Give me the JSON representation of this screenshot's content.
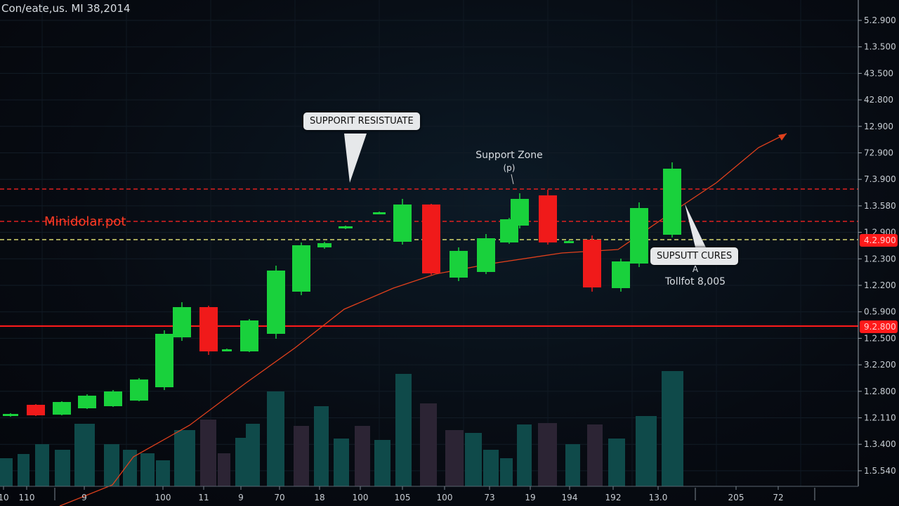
{
  "chart_data": {
    "type": "candlestick",
    "title": "Con/eate,us. MI 38,2014",
    "x_tick_labels": [
      "10",
      "110",
      "9",
      "100",
      "11",
      "9",
      "70",
      "18",
      "100",
      "105",
      "100",
      "73",
      "19",
      "194",
      "192",
      "13.0",
      "205",
      "72"
    ],
    "y_tick_labels": [
      "5.2.900",
      "1.3.500",
      "43.500",
      "42.800",
      "12.900",
      "72.900",
      "7.3.900",
      "1.3.580",
      "1.2.900",
      "1.2.300",
      "1.2.200",
      "0.5.900",
      "1.2.500",
      "3.2.200",
      "1.2.800",
      "1.2.110",
      "1.3.400",
      "1.5.540"
    ],
    "price_tags": [
      {
        "text": "4.2.900",
        "color": "#ff1a1a"
      },
      {
        "text": "9.2.800",
        "color": "#ff1a1a"
      }
    ],
    "candles": [
      {
        "o": 108,
        "c": 111,
        "h": 112,
        "l": 107
      },
      {
        "o": 124,
        "c": 109,
        "h": 125,
        "l": 108
      },
      {
        "o": 110,
        "c": 128,
        "h": 129,
        "l": 109
      },
      {
        "o": 119,
        "c": 137,
        "h": 139,
        "l": 118
      },
      {
        "o": 122,
        "c": 143,
        "h": 145,
        "l": 121
      },
      {
        "o": 130,
        "c": 160,
        "h": 162,
        "l": 129
      },
      {
        "o": 149,
        "c": 225,
        "h": 230,
        "l": 145
      },
      {
        "o": 220,
        "c": 263,
        "h": 270,
        "l": 215
      },
      {
        "o": 263,
        "c": 200,
        "h": 265,
        "l": 195
      },
      {
        "o": 202,
        "c": 203,
        "h": 204,
        "l": 201
      },
      {
        "o": 200,
        "c": 244,
        "h": 246,
        "l": 199
      },
      {
        "o": 225,
        "c": 315,
        "h": 322,
        "l": 218
      },
      {
        "o": 285,
        "c": 351,
        "h": 355,
        "l": 280
      },
      {
        "o": 348,
        "c": 354,
        "h": 356,
        "l": 346
      },
      {
        "o": 375,
        "c": 378,
        "h": 379,
        "l": 374
      },
      {
        "o": 396,
        "c": 398,
        "h": 399,
        "l": 395
      },
      {
        "o": 356,
        "c": 409,
        "h": 417,
        "l": 352
      },
      {
        "o": 409,
        "c": 311,
        "h": 410,
        "l": 309
      },
      {
        "o": 305,
        "c": 343,
        "h": 348,
        "l": 300
      },
      {
        "o": 313,
        "c": 361,
        "h": 367,
        "l": 310
      },
      {
        "o": 355,
        "c": 388,
        "h": 390,
        "l": 353
      },
      {
        "o": 379,
        "c": 417,
        "h": 425,
        "l": 375
      },
      {
        "o": 422,
        "c": 355,
        "h": 430,
        "l": 352
      },
      {
        "o": 356,
        "c": 357,
        "h": 358,
        "l": 355
      },
      {
        "o": 359,
        "c": 291,
        "h": 365,
        "l": 285
      },
      {
        "o": 290,
        "c": 328,
        "h": 332,
        "l": 285
      },
      {
        "o": 325,
        "c": 404,
        "h": 412,
        "l": 320
      },
      {
        "o": 366,
        "c": 460,
        "h": 469,
        "l": 362
      }
    ],
    "volume": [
      {
        "v": 40,
        "dir": "up"
      },
      {
        "v": 46,
        "dir": "up"
      },
      {
        "v": 60,
        "dir": "up"
      },
      {
        "v": 52,
        "dir": "up"
      },
      {
        "v": 89,
        "dir": "up"
      },
      {
        "v": 60,
        "dir": "up"
      },
      {
        "v": 52,
        "dir": "up"
      },
      {
        "v": 47,
        "dir": "up"
      },
      {
        "v": 37,
        "dir": "up"
      },
      {
        "v": 80,
        "dir": "up"
      },
      {
        "v": 95,
        "dir": "down"
      },
      {
        "v": 47,
        "dir": "down"
      },
      {
        "v": 69,
        "dir": "up"
      },
      {
        "v": 89,
        "dir": "up"
      },
      {
        "v": 135,
        "dir": "up"
      },
      {
        "v": 86,
        "dir": "down"
      },
      {
        "v": 114,
        "dir": "up"
      },
      {
        "v": 68,
        "dir": "up"
      },
      {
        "v": 86,
        "dir": "down"
      },
      {
        "v": 66,
        "dir": "up"
      },
      {
        "v": 160,
        "dir": "up"
      },
      {
        "v": 118,
        "dir": "down"
      },
      {
        "v": 80,
        "dir": "down"
      },
      {
        "v": 76,
        "dir": "up"
      },
      {
        "v": 52,
        "dir": "up"
      },
      {
        "v": 40,
        "dir": "up"
      },
      {
        "v": 88,
        "dir": "up"
      },
      {
        "v": 90,
        "dir": "down"
      },
      {
        "v": 60,
        "dir": "up"
      },
      {
        "v": 88,
        "dir": "down"
      },
      {
        "v": 68,
        "dir": "up"
      },
      {
        "v": 100,
        "dir": "up"
      },
      {
        "v": 164,
        "dir": "up"
      }
    ],
    "moving_average": [
      -20,
      10,
      50,
      95,
      155,
      205,
      260,
      290,
      310,
      325,
      340,
      345,
      400,
      440,
      490,
      510
    ],
    "levels": [
      {
        "value": 431,
        "style": "dashed",
        "color": "#e02020"
      },
      {
        "value": 385,
        "style": "dashed",
        "color": "#e02020"
      },
      {
        "value": 359,
        "style": "dashed",
        "color": "#d8d870"
      },
      {
        "value": 236,
        "style": "solid",
        "color": "#ff1a1a"
      }
    ],
    "annotations": {
      "callout_top": "SUPPORIT RESISTUATE",
      "support_zone": "Support Zone",
      "support_zone_sub": "(p)",
      "left_label": "Minidolar.pot",
      "callout_right": "SUPSUTT CURES",
      "right_sub1": "A",
      "right_sub2": "Tollfot 8,005"
    },
    "colors": {
      "up": "#19d13c",
      "down": "#f01a1a",
      "volume_up": "#0f4a4a",
      "volume_down": "#2c2434",
      "ma": "#e0401c"
    }
  }
}
